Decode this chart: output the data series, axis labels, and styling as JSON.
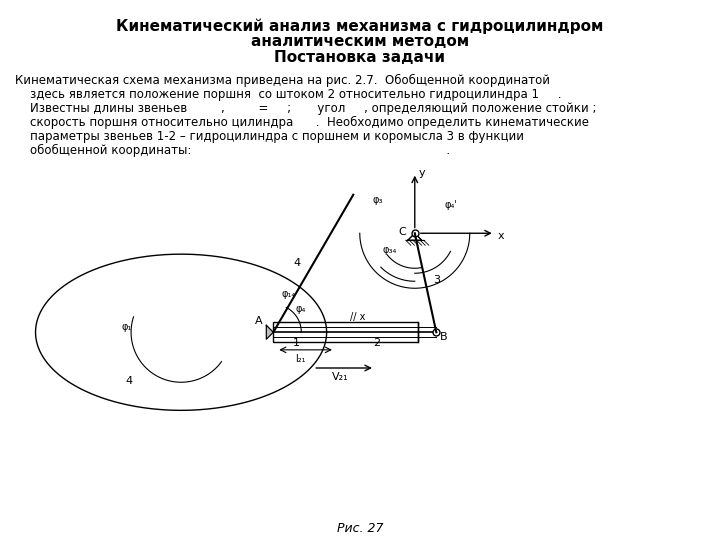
{
  "title_line1": "Кинематический анализ механизма с гидроцилиндром",
  "title_line2": "аналитическим методом",
  "title_line3": "Постановка задачи",
  "body_lines": [
    "Кинематическая схема механизма приведена на рис. 2.7.  Обобщенной координатой",
    "    здесь является положение поршня  со штоком 2 относительно гидроцилиндра 1     .",
    "    Известны длины звеньев         ,         =     ;       угол     , определяющий положение стойки ;",
    "    скорость поршня относительно цилиндра      .  Необходимо определить кинематические",
    "    параметры звеньев 1-2 – гидроцилиндра с поршнем и коромысла 3 в функции",
    "    обобщенной координаты:                                                                    ."
  ],
  "fig_caption": "Рис. 27",
  "bg_color": "#ffffff",
  "dc": "#000000"
}
